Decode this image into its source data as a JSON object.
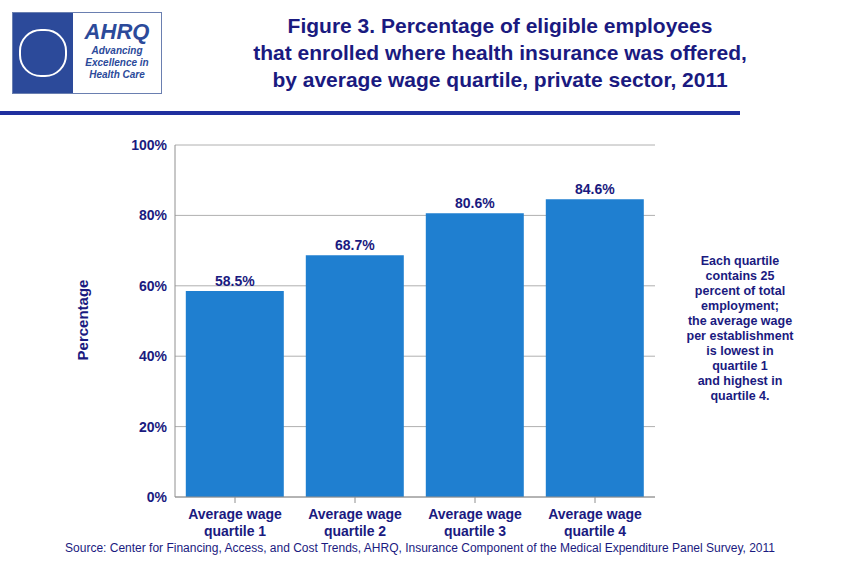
{
  "chart_data": {
    "type": "bar",
    "title": "Figure 3. Percentage of eligible employees\nthat enrolled where health insurance was offered,\nby average wage quartile, private sector, 2011",
    "y_label": "Percentage",
    "categories": [
      "Average wage quartile 1",
      "Average wage quartile 2",
      "Average wage quartile 3",
      "Average wage quartile 4"
    ],
    "values": [
      58.5,
      68.7,
      80.6,
      84.6
    ],
    "value_labels": [
      "58.5%",
      "68.7%",
      "80.6%",
      "84.6%"
    ],
    "data_labels": true,
    "color": "#1f7fd0",
    "ylim": [
      0,
      100
    ],
    "yticks": [
      {
        "value": 0,
        "label": "0%"
      },
      {
        "value": 20,
        "label": "20%"
      },
      {
        "value": 40,
        "label": "40%"
      },
      {
        "value": 60,
        "label": "60%"
      },
      {
        "value": 80,
        "label": "80%"
      },
      {
        "value": 100,
        "label": "100%"
      }
    ],
    "grid": true,
    "annotations": {
      "note": "Each quartile\ncontains 25\npercent of total\nemployment;\nthe average wage\nper establishment\nis lowest in\nquartile 1\nand highest in\nquartile 4.",
      "source": "Source: Center for Financing, Access, and Cost Trends, AHRQ, Insurance Component of the Medical Expenditure Panel Survey, 2011",
      "logo": "AHRQ",
      "logo_tagline": "Advancing\nExcellence in\nHealth Care"
    }
  }
}
